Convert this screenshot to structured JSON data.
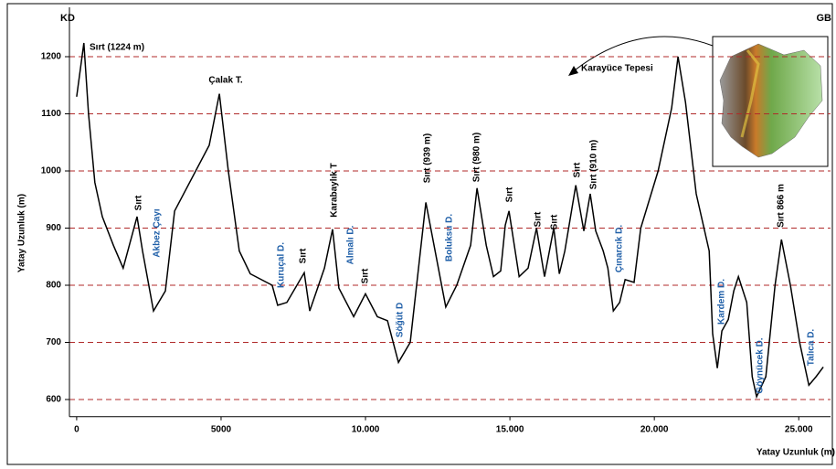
{
  "chart_data": {
    "type": "line",
    "left_label": "KD",
    "right_label": "GB",
    "xlabel": "Yatay Uzunluk (m)",
    "ylabel": "Yatay Uzunluk (m)",
    "color": "#000000",
    "grid": true,
    "grid_color": "#b02a2a",
    "annotation_color": "#1f5fa8",
    "x": [
      0,
      250,
      410,
      630,
      890,
      1270,
      1610,
      2090,
      2280,
      2660,
      3070,
      3390,
      4590,
      4940,
      5250,
      5630,
      6010,
      6770,
      6960,
      7280,
      7880,
      8070,
      8580,
      8860,
      9080,
      9590,
      10000,
      10410,
      10760,
      11140,
      11550,
      12090,
      12780,
      13160,
      13640,
      13860,
      14180,
      14430,
      14680,
      14840,
      14970,
      15320,
      15630,
      15920,
      16200,
      16520,
      16710,
      16900,
      17280,
      17560,
      17780,
      17970,
      18230,
      18390,
      18580,
      18800,
      18990,
      19300,
      19530,
      20130,
      20600,
      20820,
      21080,
      21450,
      21900,
      22020,
      22180,
      22340,
      22560,
      22750,
      22910,
      23200,
      23390,
      23540,
      23860,
      24180,
      24400,
      24710,
      25030,
      25350,
      25600,
      25850
    ],
    "values": [
      1130,
      1224,
      1100,
      980,
      920,
      870,
      830,
      920,
      860,
      755,
      790,
      930,
      1045,
      1135,
      1000,
      860,
      820,
      800,
      765,
      770,
      822,
      755,
      830,
      898,
      795,
      745,
      785,
      745,
      738,
      665,
      700,
      945,
      762,
      800,
      870,
      970,
      870,
      815,
      825,
      905,
      930,
      815,
      830,
      900,
      815,
      900,
      820,
      860,
      975,
      895,
      960,
      895,
      860,
      830,
      755,
      770,
      810,
      805,
      900,
      1000,
      1110,
      1200,
      1120,
      960,
      860,
      715,
      655,
      720,
      740,
      790,
      815,
      770,
      640,
      605,
      640,
      800,
      880,
      800,
      700,
      625,
      640,
      657
    ],
    "xlim": [
      -250,
      26100
    ],
    "ylim": [
      570,
      1260
    ],
    "xticks": [
      0,
      5000,
      {
        "value": 10000,
        "label": "10.000"
      },
      {
        "value": 15000,
        "label": "15.000"
      },
      {
        "value": 20000,
        "label": "20.000"
      },
      {
        "value": 25000,
        "label": "25.000"
      }
    ],
    "yticks": [
      600,
      700,
      800,
      900,
      1000,
      1100,
      1200
    ],
    "annotations": [
      "Sırt (1224 m)",
      "Çalak T.",
      "Sırt",
      "Akbez Çayı",
      "Kuruçal D.",
      "Sırt",
      "Karabaylık T",
      "Almalı D.",
      "Sırt",
      "Söğüt D",
      "Sırt (939 m)",
      "Boluksu D.",
      "Sırt (980 m)",
      "Sırt",
      "Sırt",
      "Sırt",
      "Sırt",
      "Sırt (910 m)",
      "Çınarcık D.",
      "Karayüce Tepesi",
      "Kardem D.",
      "Göynücek D.",
      "Sırt 866 m",
      "Talıca D."
    ]
  }
}
